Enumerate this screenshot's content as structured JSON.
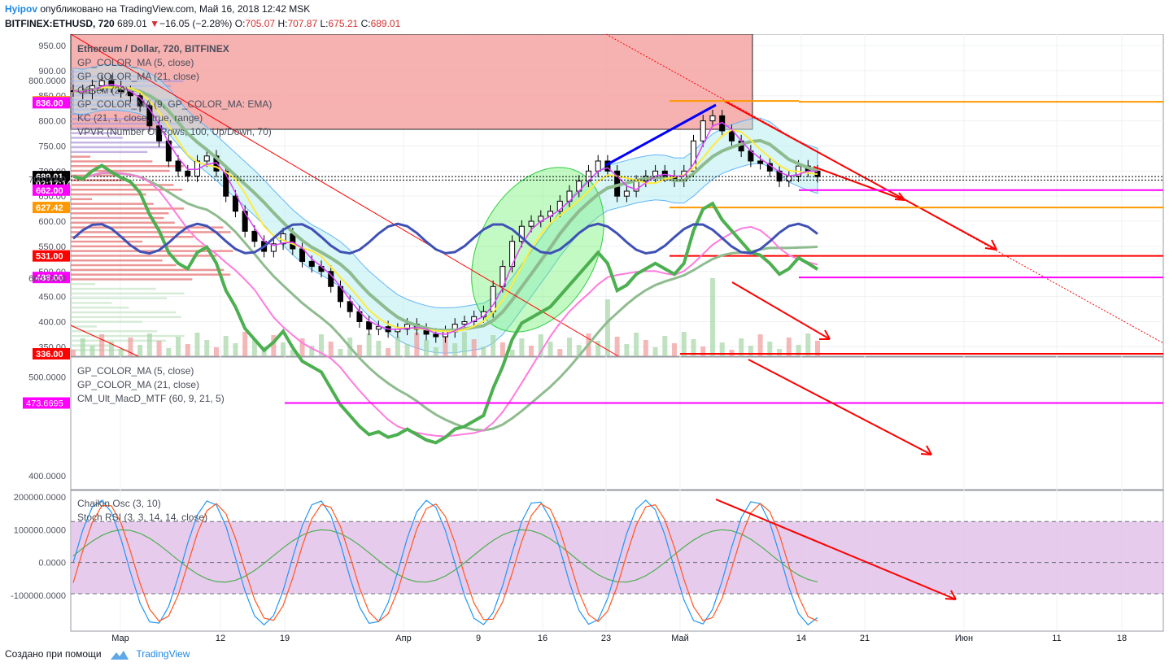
{
  "header": {
    "user": "Hyipov",
    "published": " опубликовано на TradingView.com, Май 16, 2018 12:42 MSK",
    "symbol": "BITFINEX:ETHUSD, 720",
    "last": "689.01",
    "change": "−16.05 (−2.28%)",
    "o_label": "O:",
    "o": "705.07",
    "h_label": "H:",
    "h": "707.87",
    "l_label": "L:",
    "l": "675.21",
    "c_label": "C:",
    "c": "689.01"
  },
  "legend_main": [
    "Ethereum / Dollar, 720, BITFINEX",
    "GP_COLOR_MA (5, close)",
    "GP_COLOR_MA (21, close)",
    "Объем (20)",
    "GP_COLOR_MA (9, GP_COLOR_MA: EMA)",
    "KC (21, 1, close, true, range)",
    "VPVR (Number Of Rows, 100, Up/Down, 70)"
  ],
  "legend_mid": [
    "GP_COLOR_MA (5, close)",
    "GP_COLOR_MA (21, close)",
    "CM_Ult_MacD_MTF (60, 9, 21, 5)"
  ],
  "legend_bot": [
    "Chaikin Osc (3, 10)",
    "Stoch RSI (3, 3, 14, 14, close)"
  ],
  "footer": {
    "created": "Создано при помощи",
    "brand": "TradingView"
  },
  "colors": {
    "up": "#ffffff",
    "down": "#000000",
    "resistance": "#ff0000",
    "magenta": "#ff00ff",
    "orange": "#ff9800",
    "band_fill": "#b2ebf2",
    "stoch_band": "#e1bee7"
  },
  "chart_data": [
    {
      "type": "candlestick",
      "title": "Ethereum / Dollar, 720, BITFINEX",
      "y_ticks": [
        "950.00",
        "900.00",
        "850.00",
        "800.00",
        "750.00",
        "700.00",
        "650.00",
        "600.00",
        "550.00",
        "500.00",
        "450.00",
        "400.00",
        "350.00"
      ],
      "x_ticks": [
        "Мар",
        "12",
        "19",
        "Апр",
        "9",
        "16",
        "23",
        "Май",
        "14",
        "21",
        "Июн",
        "11",
        "18"
      ],
      "ylim": [
        336,
        960
      ],
      "price_labels": [
        {
          "text": "838.00",
          "value": 838,
          "color": "#ff9800"
        },
        {
          "text": "836.00",
          "value": 836,
          "color": "#ff00ff"
        },
        {
          "text": "689.01",
          "value": 689.01,
          "color": "#000000"
        },
        {
          "text": "02:17:14",
          "value": 675,
          "color": "#000000"
        },
        {
          "text": "662.00",
          "value": 662,
          "color": "#ff00ff"
        },
        {
          "text": "627.42",
          "value": 627.42,
          "color": "#ff9800"
        },
        {
          "text": "531.00",
          "value": 531,
          "color": "#ff0000"
        },
        {
          "text": "488.00",
          "value": 488,
          "color": "#ff00ff"
        },
        {
          "text": "336.00",
          "value": 336,
          "color": "#ff0000"
        }
      ],
      "horizontal_levels": [
        838,
        662,
        627.42,
        531,
        488,
        336
      ],
      "close_path": [
        860,
        855,
        870,
        880,
        868,
        858,
        850,
        830,
        790,
        760,
        720,
        700,
        690,
        720,
        730,
        700,
        650,
        620,
        580,
        560,
        540,
        555,
        575,
        545,
        520,
        510,
        500,
        470,
        440,
        420,
        400,
        385,
        390,
        380,
        385,
        395,
        385,
        375,
        370,
        380,
        395,
        400,
        410,
        420,
        470,
        510,
        560,
        590,
        600,
        610,
        620,
        640,
        660,
        680,
        700,
        720,
        700,
        650,
        660,
        680,
        690,
        700,
        690,
        680,
        700,
        760,
        800,
        810,
        780,
        760,
        740,
        720,
        715,
        700,
        680,
        690,
        710,
        700,
        689
      ]
    },
    {
      "type": "line",
      "title": "CM_Ult_MacD_MTF (60, 9, 21, 5)",
      "y_ticks": [
        "900.0000",
        "800.0000",
        "700.0000",
        "600.0000",
        "500.0000",
        "400.0000"
      ],
      "ylim": [
        380,
        905
      ],
      "level": {
        "text": "473.6695",
        "value": 473.6695
      }
    },
    {
      "type": "line",
      "title": "Chaikin Osc (3, 10)",
      "y_ticks": [
        "200000.0000",
        "100000.0000",
        "0.0000",
        "-100000.0000"
      ],
      "ylim": [
        -240000,
        215000
      ],
      "band": [
        -95000,
        125000
      ]
    }
  ]
}
